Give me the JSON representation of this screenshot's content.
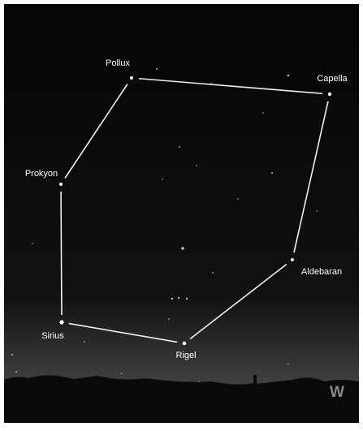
{
  "stars": [
    {
      "label": "Pollux"
    },
    {
      "label": "Capella"
    },
    {
      "label": "Aldebaran"
    },
    {
      "label": "Rigel"
    },
    {
      "label": "Sirius"
    },
    {
      "label": "Prokyon"
    }
  ],
  "direction": "W"
}
